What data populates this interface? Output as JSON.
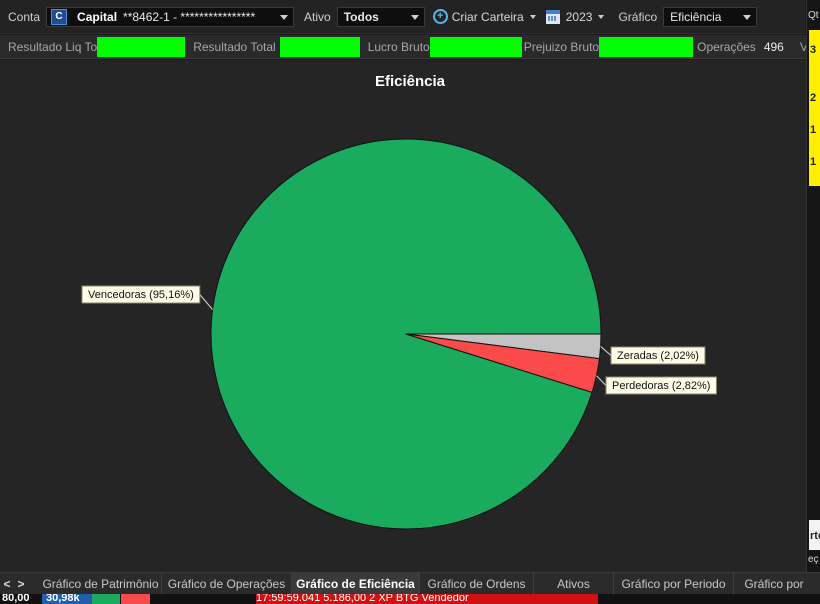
{
  "toolbar": {
    "conta_label": "Conta",
    "conta_icon": "capital-logo-icon",
    "conta_name": "Capital",
    "conta_account": "**8462-1 - ****************",
    "ativo_label": "Ativo",
    "ativo_value": "Todos",
    "criar_label": "Criar Carteira",
    "year_value": "2023",
    "grafico_label": "Gráfico",
    "grafico_value": "Eficiência"
  },
  "stats": {
    "resultado_liq_label": "Resultado Liq To",
    "resultado_total_label": "Resultado Total",
    "lucro_bruto_label": "Lucro Bruto",
    "prejuizo_bruto_label": "Prejuizo Bruto",
    "operacoes_label": "Operações",
    "operacoes_value": "496",
    "vencedoras_label": "Vencedora",
    "mask_color": "#00ff00"
  },
  "chart_data": {
    "type": "pie",
    "title": "Eficiência",
    "slices": [
      {
        "name": "Vencedoras",
        "value": 95.16,
        "label": "Vencedoras (95,16%)",
        "color": "#1aab5e"
      },
      {
        "name": "Zeradas",
        "value": 2.02,
        "label": "Zeradas (2,02%)",
        "color": "#c3c3c3"
      },
      {
        "name": "Perdedoras",
        "value": 2.82,
        "label": "Perdedoras (2,82%)",
        "color": "#fb4a4a"
      }
    ]
  },
  "tabs": [
    {
      "label": "Gráfico de Patrimônio",
      "active": false
    },
    {
      "label": "Gráfico de Operações",
      "active": false
    },
    {
      "label": "Gráfico de Eficiência",
      "active": true
    },
    {
      "label": "Gráfico de Ordens",
      "active": false
    },
    {
      "label": "Ativos",
      "active": false
    },
    {
      "label": "Gráfico por Periodo",
      "active": false
    },
    {
      "label": "Gráfico por",
      "active": false
    }
  ],
  "tab_nav": {
    "prev": "<",
    "next": ">"
  },
  "strip": {
    "left_value": "80,00",
    "blue_value": "30,98k",
    "trade_row": "17:59:59.041  5.186,00     2      XP      BTG    Vendedor"
  },
  "right_panel": {
    "header": "Qt",
    "y1": "3",
    "y2": "2",
    "y3": "1",
    "y4": "1",
    "bottom1": "rte",
    "bottom2": "eç"
  }
}
